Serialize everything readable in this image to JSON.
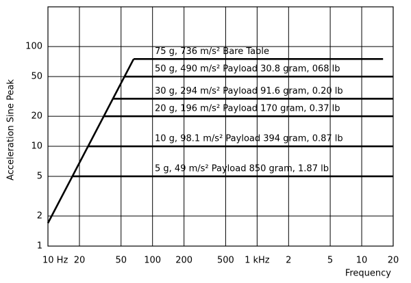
{
  "chart_data": {
    "type": "line",
    "xlabel": "Frequency",
    "ylabel": "Acceleration Sine Peak",
    "xlog": true,
    "ylog": true,
    "grid": true,
    "color": "#000000",
    "xlim": [
      10,
      20000
    ],
    "ylim": [
      1,
      250
    ],
    "xticks": [
      {
        "value": 10,
        "label": "10 Hz"
      },
      20,
      50,
      100,
      200,
      500,
      {
        "value": 1000,
        "label": "1 kHz"
      },
      {
        "value": 2000,
        "label": "2"
      },
      {
        "value": 5000,
        "label": "5"
      },
      {
        "value": 10000,
        "label": "10"
      },
      {
        "value": 20000,
        "label": "20"
      }
    ],
    "yticks": [
      1,
      2,
      5,
      10,
      20,
      50,
      100
    ],
    "series": [
      {
        "x": [
          10,
          66
        ],
        "values": [
          1.7,
          75
        ]
      },
      {
        "name": "75 g, 736 m/s² Bare Table",
        "x": [
          66,
          16000
        ],
        "values": [
          75,
          75
        ]
      },
      {
        "name": "50 g, 490 m/s² Payload 30.8 gram, 068 lb",
        "x": [
          54,
          20000
        ],
        "values": [
          50,
          50
        ]
      },
      {
        "name": "30 g, 294 m/s² Payload 91.6 gram, 0.20 lb",
        "x": [
          42,
          20000
        ],
        "values": [
          30,
          30
        ]
      },
      {
        "name": "20 g, 196 m/s² Payload 170 gram, 0.37 lb",
        "x": [
          34,
          20000
        ],
        "values": [
          20,
          20
        ]
      },
      {
        "name": "10 g, 98.1 m/s² Payload 394 gram, 0.87 lb",
        "x": [
          24,
          20000
        ],
        "values": [
          10,
          10
        ]
      },
      {
        "name": "5 g, 49 m/s² Payload 850 gram, 1.87 lb",
        "x": [
          17,
          20000
        ],
        "values": [
          5,
          5
        ]
      }
    ]
  }
}
